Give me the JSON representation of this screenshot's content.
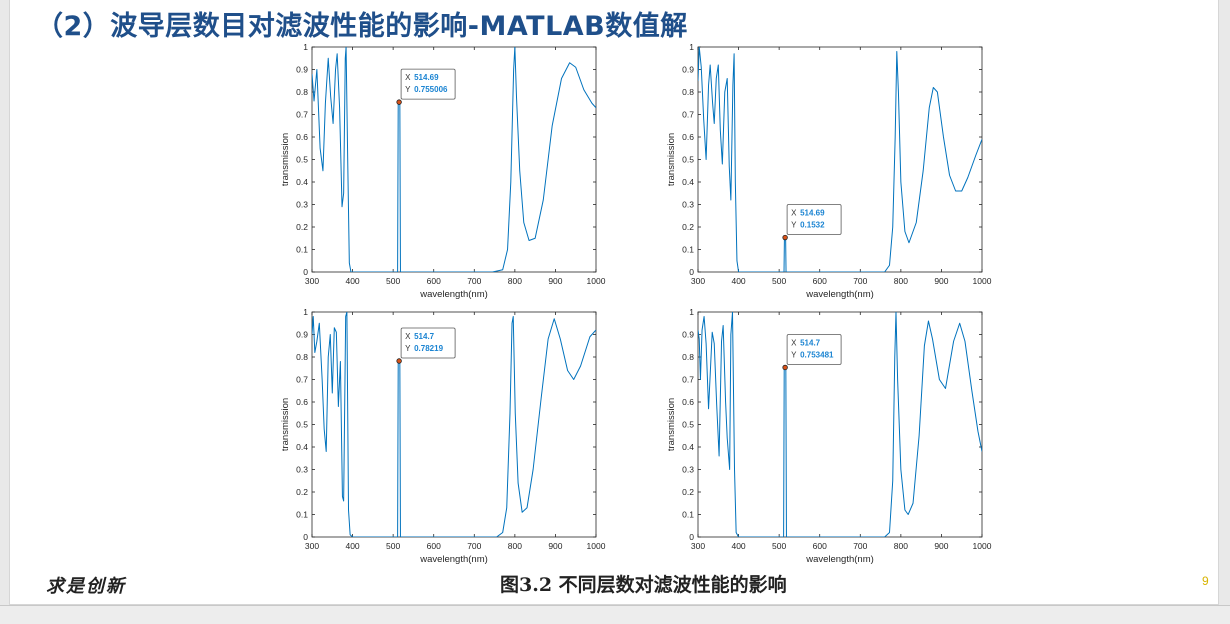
{
  "slide": {
    "title": "（2）波导层数目对滤波性能的影响-MATLAB数值解",
    "caption": "图3.2 不同层数对滤波性能的影响",
    "logo_text": "求是创新",
    "page_number": "9"
  },
  "chart_data": [
    {
      "type": "line",
      "xlabel": "wavelength(nm)",
      "ylabel": "transmission",
      "xlim": [
        300,
        1000
      ],
      "ylim": [
        0,
        1
      ],
      "xticks": [
        300,
        400,
        500,
        600,
        700,
        800,
        900,
        1000
      ],
      "yticks": [
        0,
        0.1,
        0.2,
        0.3,
        0.4,
        0.5,
        0.6,
        0.7,
        0.8,
        0.9,
        1
      ],
      "xtick_labels": [
        "300",
        "400",
        "500",
        "600",
        "700",
        "800",
        "900",
        "1000"
      ],
      "ytick_labels": [
        "0",
        "0.1",
        "0.2",
        "0.3",
        "0.4",
        "0.5",
        "0.6",
        "0.7",
        "0.8",
        "0.9",
        "1"
      ],
      "grid": false,
      "series_color": "#0072bd",
      "series": [
        {
          "points": [
            [
              300,
              0.88
            ],
            [
              305,
              0.76
            ],
            [
              312,
              0.9
            ],
            [
              320,
              0.55
            ],
            [
              327,
              0.45
            ],
            [
              333,
              0.75
            ],
            [
              340,
              0.95
            ],
            [
              346,
              0.78
            ],
            [
              352,
              0.66
            ],
            [
              358,
              0.9
            ],
            [
              362,
              0.97
            ],
            [
              368,
              0.73
            ],
            [
              374,
              0.29
            ],
            [
              378,
              0.35
            ],
            [
              382,
              0.95
            ],
            [
              384,
              1.0
            ],
            [
              388,
              0.5
            ],
            [
              392,
              0.04
            ],
            [
              396,
              0.0
            ],
            [
              511,
              0.0
            ],
            [
              512.5,
              0.76
            ],
            [
              514.69,
              0.755006
            ],
            [
              516.5,
              0.76
            ],
            [
              518,
              0.0
            ],
            [
              745,
              0.0
            ],
            [
              770,
              0.01
            ],
            [
              782,
              0.1
            ],
            [
              790,
              0.4
            ],
            [
              797,
              0.9
            ],
            [
              800,
              1.0
            ],
            [
              804,
              0.78
            ],
            [
              812,
              0.45
            ],
            [
              822,
              0.22
            ],
            [
              835,
              0.14
            ],
            [
              850,
              0.15
            ],
            [
              870,
              0.32
            ],
            [
              892,
              0.65
            ],
            [
              915,
              0.86
            ],
            [
              935,
              0.93
            ],
            [
              950,
              0.91
            ],
            [
              970,
              0.81
            ],
            [
              990,
              0.75
            ],
            [
              1000,
              0.73
            ]
          ]
        }
      ],
      "datatip": {
        "x": 514.69,
        "y": 0.755006,
        "x_label": "X",
        "y_label": "Y",
        "x_text": "514.69",
        "y_text": "0.755006"
      }
    },
    {
      "type": "line",
      "xlabel": "wavelength(nm)",
      "ylabel": "transmission",
      "xlim": [
        300,
        1000
      ],
      "ylim": [
        0,
        1
      ],
      "xticks": [
        300,
        400,
        500,
        600,
        700,
        800,
        900,
        1000
      ],
      "yticks": [
        0,
        0.1,
        0.2,
        0.3,
        0.4,
        0.5,
        0.6,
        0.7,
        0.8,
        0.9,
        1
      ],
      "xtick_labels": [
        "300",
        "400",
        "500",
        "600",
        "700",
        "800",
        "900",
        "1000"
      ],
      "ytick_labels": [
        "0",
        "0.1",
        "0.2",
        "0.3",
        "0.4",
        "0.5",
        "0.6",
        "0.7",
        "0.8",
        "0.9",
        "1"
      ],
      "grid": false,
      "series_color": "#0072bd",
      "series": [
        {
          "points": [
            [
              300,
              0.85
            ],
            [
              303,
              1.0
            ],
            [
              308,
              0.91
            ],
            [
              314,
              0.68
            ],
            [
              320,
              0.5
            ],
            [
              326,
              0.83
            ],
            [
              330,
              0.92
            ],
            [
              336,
              0.75
            ],
            [
              340,
              0.66
            ],
            [
              345,
              0.86
            ],
            [
              350,
              0.92
            ],
            [
              355,
              0.63
            ],
            [
              360,
              0.48
            ],
            [
              366,
              0.8
            ],
            [
              372,
              0.86
            ],
            [
              377,
              0.47
            ],
            [
              381,
              0.32
            ],
            [
              386,
              0.83
            ],
            [
              389,
              0.97
            ],
            [
              392,
              0.4
            ],
            [
              396,
              0.05
            ],
            [
              400,
              0.0
            ],
            [
              512,
              0.0
            ],
            [
              513,
              0.15
            ],
            [
              514.69,
              0.1532
            ],
            [
              516,
              0.15
            ],
            [
              517,
              0.0
            ],
            [
              760,
              0.0
            ],
            [
              772,
              0.03
            ],
            [
              780,
              0.2
            ],
            [
              786,
              0.6
            ],
            [
              790,
              0.98
            ],
            [
              794,
              0.8
            ],
            [
              800,
              0.4
            ],
            [
              810,
              0.18
            ],
            [
              820,
              0.13
            ],
            [
              838,
              0.22
            ],
            [
              855,
              0.45
            ],
            [
              870,
              0.73
            ],
            [
              880,
              0.82
            ],
            [
              890,
              0.8
            ],
            [
              905,
              0.6
            ],
            [
              920,
              0.43
            ],
            [
              935,
              0.36
            ],
            [
              950,
              0.36
            ],
            [
              965,
              0.42
            ],
            [
              985,
              0.52
            ],
            [
              1000,
              0.59
            ]
          ]
        }
      ],
      "datatip": {
        "x": 514.69,
        "y": 0.1532,
        "x_label": "X",
        "y_label": "Y",
        "x_text": "514.69",
        "y_text": "0.1532"
      }
    },
    {
      "type": "line",
      "xlabel": "wavelength(nm)",
      "ylabel": "transmission",
      "xlim": [
        300,
        1000
      ],
      "ylim": [
        0,
        1
      ],
      "xticks": [
        300,
        400,
        500,
        600,
        700,
        800,
        900,
        1000
      ],
      "yticks": [
        0,
        0.1,
        0.2,
        0.3,
        0.4,
        0.5,
        0.6,
        0.7,
        0.8,
        0.9,
        1
      ],
      "xtick_labels": [
        "300",
        "400",
        "500",
        "600",
        "700",
        "800",
        "900",
        "1000"
      ],
      "ytick_labels": [
        "0",
        "0.1",
        "0.2",
        "0.3",
        "0.4",
        "0.5",
        "0.6",
        "0.7",
        "0.8",
        "0.9",
        "1"
      ],
      "grid": false,
      "series_color": "#0072bd",
      "series": [
        {
          "points": [
            [
              300,
              0.9
            ],
            [
              303,
              0.98
            ],
            [
              307,
              0.82
            ],
            [
              312,
              0.87
            ],
            [
              318,
              0.95
            ],
            [
              325,
              0.7
            ],
            [
              330,
              0.48
            ],
            [
              335,
              0.38
            ],
            [
              340,
              0.8
            ],
            [
              345,
              0.9
            ],
            [
              350,
              0.64
            ],
            [
              355,
              0.93
            ],
            [
              360,
              0.91
            ],
            [
              365,
              0.58
            ],
            [
              370,
              0.78
            ],
            [
              375,
              0.18
            ],
            [
              378,
              0.16
            ],
            [
              383,
              0.98
            ],
            [
              386,
              1.0
            ],
            [
              390,
              0.12
            ],
            [
              394,
              0.01
            ],
            [
              400,
              0.0
            ],
            [
              511,
              0.0
            ],
            [
              512.5,
              0.78
            ],
            [
              514.7,
              0.78219
            ],
            [
              516.5,
              0.78
            ],
            [
              518,
              0.0
            ],
            [
              755,
              0.0
            ],
            [
              770,
              0.02
            ],
            [
              780,
              0.13
            ],
            [
              788,
              0.55
            ],
            [
              793,
              0.95
            ],
            [
              796,
              0.98
            ],
            [
              801,
              0.55
            ],
            [
              808,
              0.24
            ],
            [
              818,
              0.11
            ],
            [
              830,
              0.13
            ],
            [
              845,
              0.3
            ],
            [
              865,
              0.62
            ],
            [
              882,
              0.88
            ],
            [
              897,
              0.97
            ],
            [
              912,
              0.88
            ],
            [
              930,
              0.74
            ],
            [
              945,
              0.7
            ],
            [
              962,
              0.76
            ],
            [
              985,
              0.89
            ],
            [
              1000,
              0.92
            ]
          ]
        }
      ],
      "datatip": {
        "x": 514.7,
        "y": 0.78219,
        "x_label": "X",
        "y_label": "Y",
        "x_text": "514.7",
        "y_text": "0.78219"
      }
    },
    {
      "type": "line",
      "xlabel": "wavelength(nm)",
      "ylabel": "transmission",
      "xlim": [
        300,
        1000
      ],
      "ylim": [
        0,
        1
      ],
      "xticks": [
        300,
        400,
        500,
        600,
        700,
        800,
        900,
        1000
      ],
      "yticks": [
        0,
        0.1,
        0.2,
        0.3,
        0.4,
        0.5,
        0.6,
        0.7,
        0.8,
        0.9,
        1
      ],
      "xtick_labels": [
        "300",
        "400",
        "500",
        "600",
        "700",
        "800",
        "900",
        "1000"
      ],
      "ytick_labels": [
        "0",
        "0.1",
        "0.2",
        "0.3",
        "0.4",
        "0.5",
        "0.6",
        "0.7",
        "0.8",
        "0.9",
        "1"
      ],
      "grid": false,
      "series_color": "#0072bd",
      "series": [
        {
          "points": [
            [
              300,
              0.92
            ],
            [
              303,
              0.88
            ],
            [
              306,
              0.7
            ],
            [
              310,
              0.92
            ],
            [
              315,
              0.98
            ],
            [
              320,
              0.86
            ],
            [
              326,
              0.57
            ],
            [
              330,
              0.72
            ],
            [
              335,
              0.91
            ],
            [
              340,
              0.86
            ],
            [
              346,
              0.59
            ],
            [
              352,
              0.36
            ],
            [
              358,
              0.87
            ],
            [
              362,
              0.94
            ],
            [
              368,
              0.6
            ],
            [
              372,
              0.44
            ],
            [
              378,
              0.3
            ],
            [
              381,
              0.9
            ],
            [
              385,
              1.0
            ],
            [
              390,
              0.3
            ],
            [
              394,
              0.02
            ],
            [
              400,
              0.0
            ],
            [
              511,
              0.0
            ],
            [
              512.5,
              0.75
            ],
            [
              514.7,
              0.753481
            ],
            [
              516.5,
              0.75
            ],
            [
              518,
              0.0
            ],
            [
              760,
              0.0
            ],
            [
              772,
              0.02
            ],
            [
              780,
              0.25
            ],
            [
              785,
              0.8
            ],
            [
              788,
              1.0
            ],
            [
              792,
              0.7
            ],
            [
              800,
              0.3
            ],
            [
              810,
              0.12
            ],
            [
              818,
              0.1
            ],
            [
              830,
              0.15
            ],
            [
              845,
              0.45
            ],
            [
              858,
              0.85
            ],
            [
              868,
              0.96
            ],
            [
              878,
              0.88
            ],
            [
              895,
              0.7
            ],
            [
              910,
              0.66
            ],
            [
              930,
              0.87
            ],
            [
              945,
              0.95
            ],
            [
              958,
              0.87
            ],
            [
              975,
              0.65
            ],
            [
              990,
              0.47
            ],
            [
              1000,
              0.38
            ]
          ]
        }
      ],
      "datatip": {
        "x": 514.7,
        "y": 0.753481,
        "x_label": "X",
        "y_label": "Y",
        "x_text": "514.7",
        "y_text": "0.753481"
      }
    }
  ]
}
